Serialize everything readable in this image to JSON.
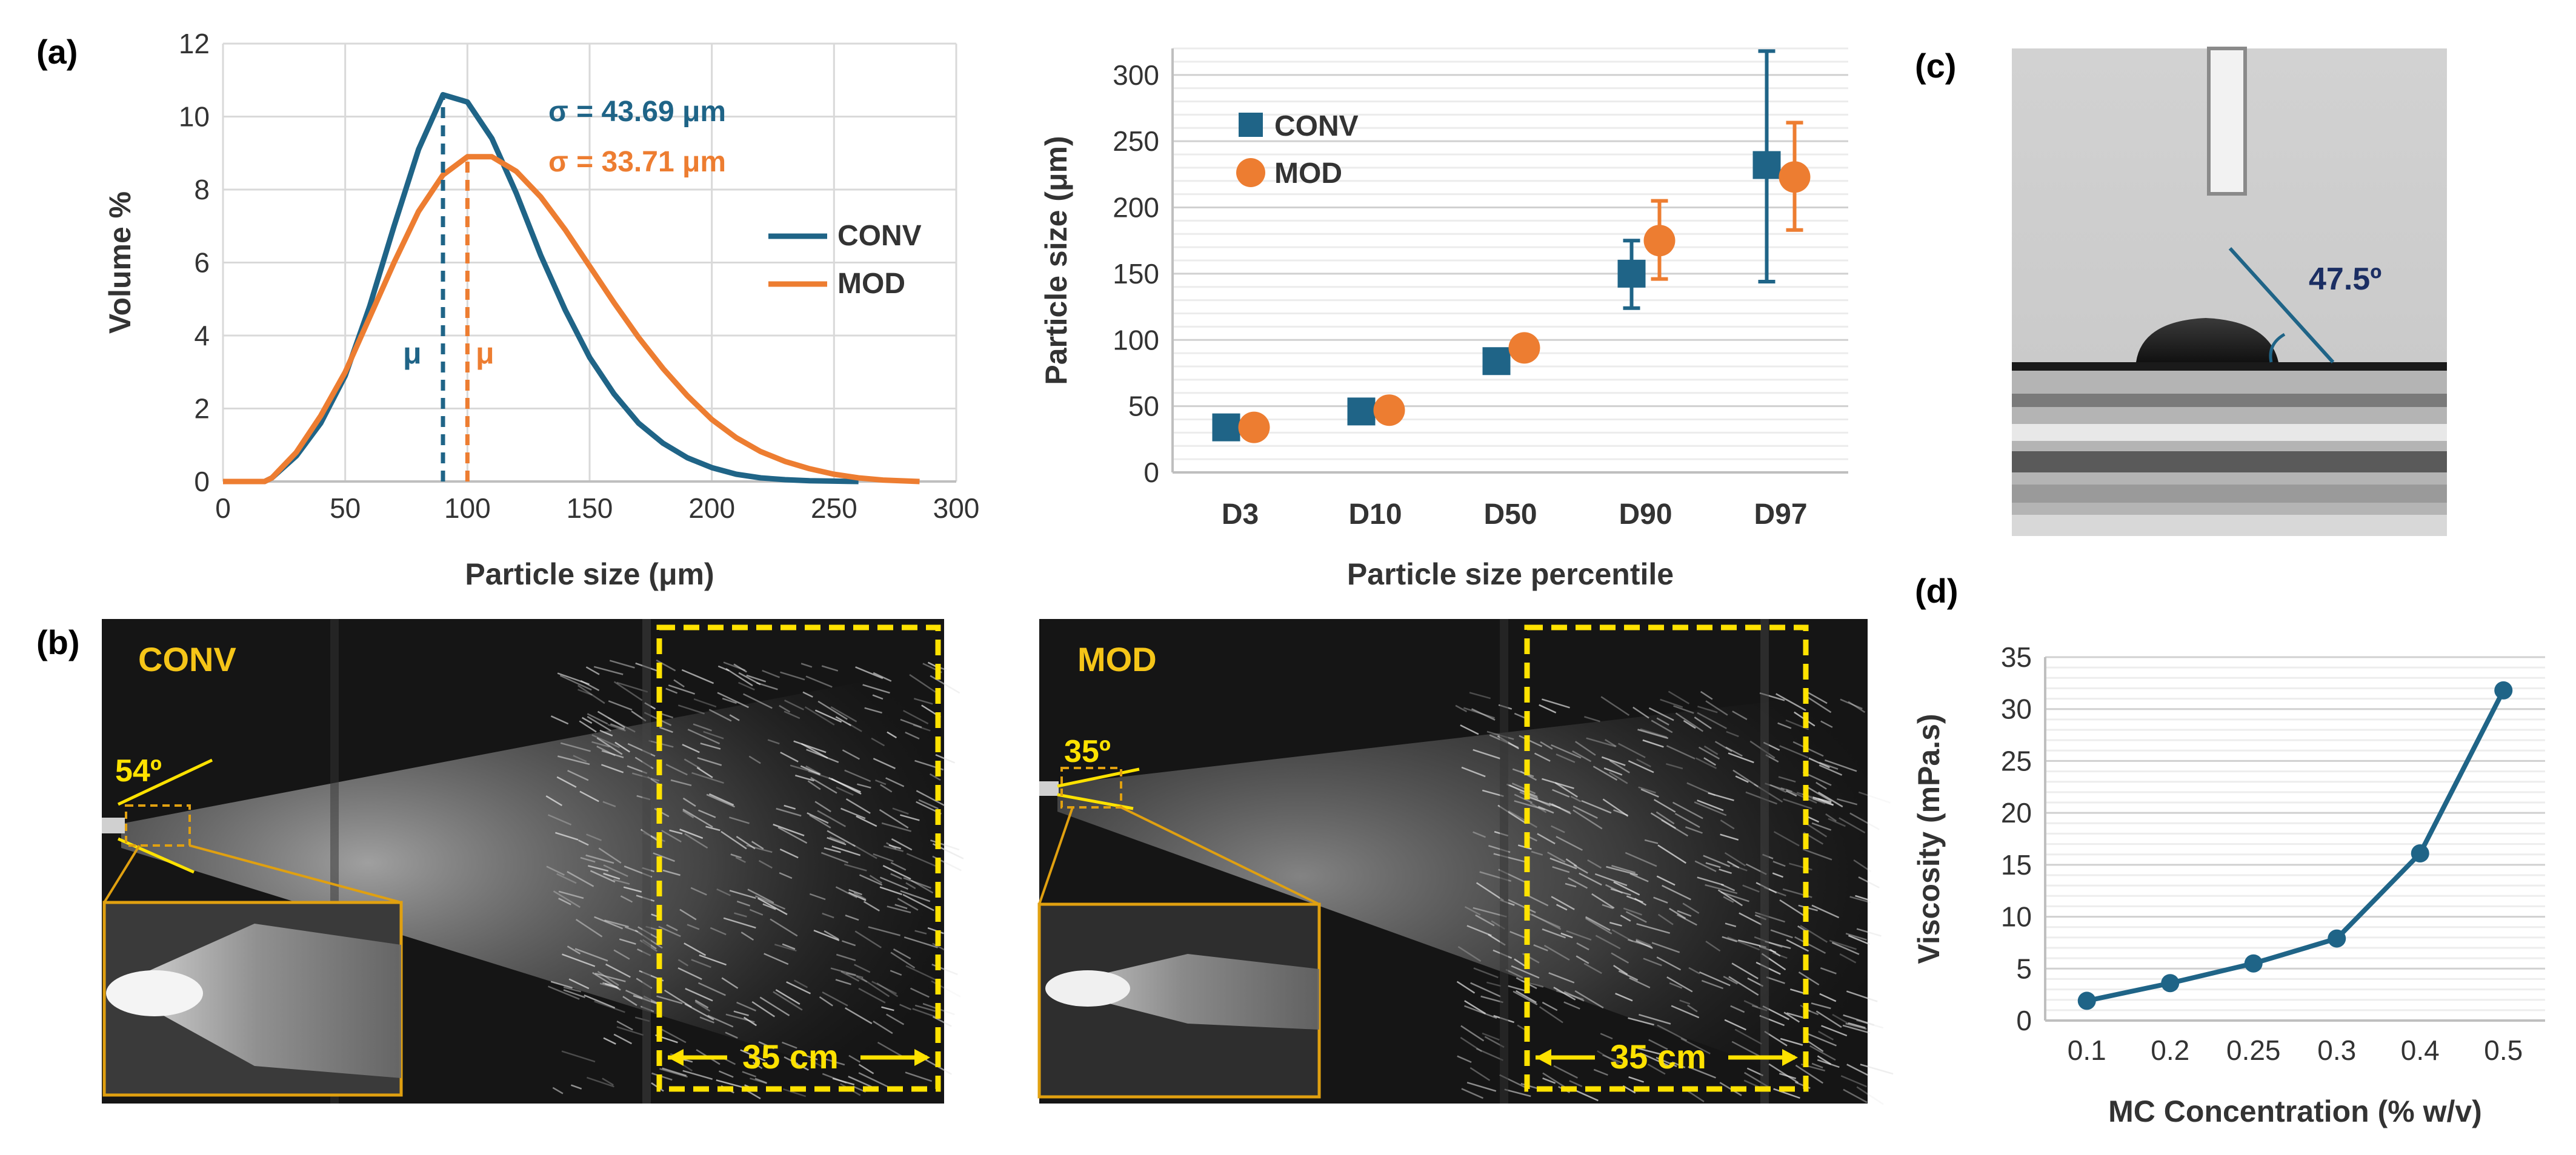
{
  "panel_labels": {
    "a": "(a)",
    "b": "(b)",
    "c": "(c)",
    "d": "(d)"
  },
  "colors": {
    "conv": "#1F6487",
    "mod": "#ED7D31",
    "angle_label_dark": "#1B2E63",
    "overlay_yellow": "#FFE200",
    "inset_border": "#E0A010"
  },
  "chart_data": [
    {
      "id": "psd",
      "type": "line",
      "title": "",
      "xlabel": "Particle size (μm)",
      "ylabel": "Volume %",
      "xlim": [
        0,
        300
      ],
      "ylim": [
        0,
        12
      ],
      "xticks": [
        0,
        50,
        100,
        150,
        200,
        250,
        300
      ],
      "yticks": [
        0,
        2,
        4,
        6,
        8,
        10,
        12
      ],
      "grid": true,
      "series": [
        {
          "name": "CONV",
          "x": [
            0,
            17,
            20,
            30,
            40,
            50,
            60,
            70,
            80,
            90,
            100,
            110,
            120,
            130,
            140,
            150,
            160,
            170,
            180,
            190,
            200,
            210,
            220,
            230,
            240,
            250,
            260
          ],
          "y": [
            0,
            0,
            0.1,
            0.7,
            1.6,
            2.9,
            4.8,
            7.0,
            9.1,
            10.6,
            10.4,
            9.4,
            7.9,
            6.2,
            4.7,
            3.4,
            2.4,
            1.6,
            1.05,
            0.65,
            0.38,
            0.2,
            0.1,
            0.05,
            0.02,
            0.01,
            0
          ]
        },
        {
          "name": "MOD",
          "x": [
            0,
            17,
            20,
            30,
            40,
            50,
            60,
            70,
            80,
            90,
            100,
            110,
            120,
            130,
            140,
            150,
            160,
            170,
            180,
            190,
            200,
            210,
            220,
            230,
            240,
            250,
            260,
            270,
            285
          ],
          "y": [
            0,
            0,
            0.1,
            0.8,
            1.8,
            3.0,
            4.5,
            6.0,
            7.4,
            8.4,
            8.9,
            8.9,
            8.5,
            7.8,
            6.9,
            5.9,
            4.9,
            3.95,
            3.1,
            2.35,
            1.7,
            1.2,
            0.82,
            0.55,
            0.35,
            0.2,
            0.1,
            0.04,
            0
          ]
        }
      ],
      "mean_lines": [
        {
          "series": "CONV",
          "x": 90,
          "label": "μ"
        },
        {
          "series": "MOD",
          "x": 100,
          "label": "μ"
        }
      ],
      "annotations": [
        {
          "series": "CONV",
          "text": "σ = 43.69 μm"
        },
        {
          "series": "MOD",
          "text": "σ = 33.71 μm"
        }
      ],
      "legend": [
        "CONV",
        "MOD"
      ],
      "legend_position": "right"
    },
    {
      "id": "percentiles",
      "type": "scatter",
      "title": "",
      "xlabel": "Particle size percentile",
      "ylabel": "Particle size (μm)",
      "categories": [
        "D3",
        "D10",
        "D50",
        "D90",
        "D97"
      ],
      "ylim": [
        0,
        320
      ],
      "yticks": [
        0,
        50,
        100,
        150,
        200,
        250,
        300
      ],
      "grid": true,
      "series": [
        {
          "name": "CONV",
          "marker": "square",
          "values": [
            34,
            46,
            84,
            150,
            232
          ],
          "err_low": [
            30,
            43,
            81,
            124,
            144
          ],
          "err_high": [
            38,
            50,
            88,
            175,
            318
          ]
        },
        {
          "name": "MOD",
          "marker": "circle",
          "values": [
            34,
            47,
            94,
            175,
            223
          ],
          "err_low": [
            31,
            44,
            90,
            146,
            183
          ],
          "err_high": [
            37,
            50,
            98,
            205,
            264
          ]
        }
      ],
      "legend": [
        "CONV",
        "MOD"
      ],
      "legend_position": "top-left"
    },
    {
      "id": "viscosity",
      "type": "line",
      "title": "",
      "xlabel": "MC Concentration (% w/v)",
      "ylabel": "Viscosity (mPa.s)",
      "categories": [
        "0.1",
        "0.2",
        "0.25",
        "0.3",
        "0.4",
        "0.5"
      ],
      "values": [
        1.9,
        3.6,
        5.5,
        7.9,
        16.1,
        31.8
      ],
      "ylim": [
        0,
        35
      ],
      "yticks": [
        0,
        5,
        10,
        15,
        20,
        25,
        30,
        35
      ],
      "grid": true
    }
  ],
  "spray": {
    "conv": {
      "label": "CONV",
      "angle": "54º",
      "scale": "35 cm"
    },
    "mod": {
      "label": "MOD",
      "angle": "35º",
      "scale": "35 cm"
    }
  },
  "contact": {
    "angle": "47.5º"
  }
}
